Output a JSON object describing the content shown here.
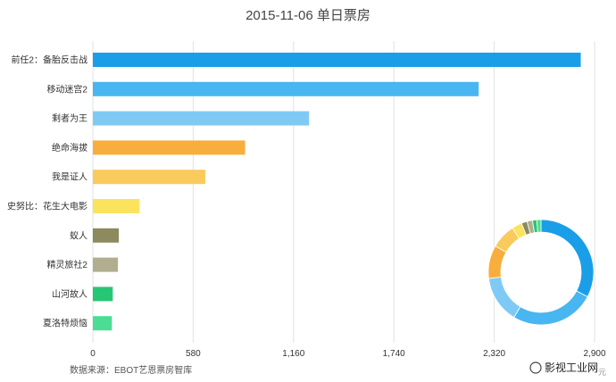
{
  "chart_data": {
    "type": "bar",
    "orientation": "horizontal",
    "title": "2015-11-06 单日票房",
    "categories": [
      "前任2：备胎反击战",
      "移动迷宫2",
      "剩者为王",
      "绝命海拔",
      "我是证人",
      "史努比：花生大电影",
      "蚁人",
      "精灵旅社2",
      "山河故人",
      "夏洛特烦恼"
    ],
    "values": [
      2820,
      2230,
      1250,
      880,
      650,
      270,
      150,
      145,
      115,
      110
    ],
    "colors": [
      "#1a9ee8",
      "#48b6f0",
      "#7fcaf5",
      "#f8ae3c",
      "#f9ca5c",
      "#fbe35e",
      "#8c8a5e",
      "#b0ae8e",
      "#27c674",
      "#4cdc94"
    ],
    "xlim": [
      0,
      2900
    ],
    "ticks": [
      "0",
      "580",
      "1,160",
      "1,740",
      "2,320",
      "2,900"
    ],
    "tick_values": [
      0,
      580,
      1160,
      1740,
      2320,
      2900
    ],
    "grid": true,
    "donut": {
      "type": "pie",
      "values": [
        2820,
        2230,
        1250,
        880,
        650,
        270,
        150,
        145,
        115,
        110
      ]
    }
  },
  "footer": {
    "source": "数据来源：EBOT艺恩票房智库"
  },
  "watermark": {
    "text": "影视工业网",
    "sub": "元"
  }
}
